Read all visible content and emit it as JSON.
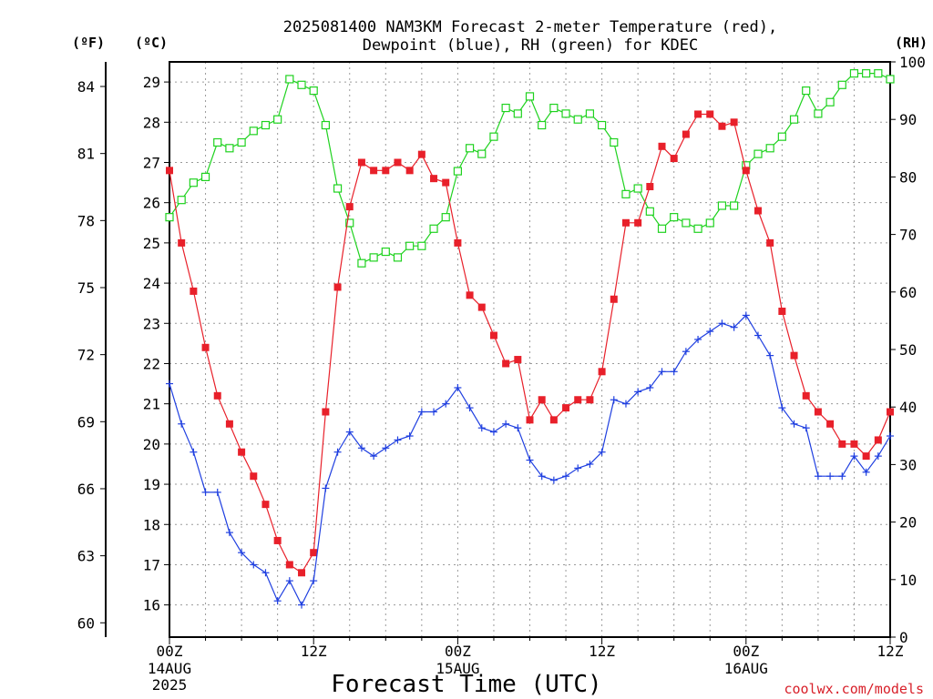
{
  "chart_data": {
    "type": "line",
    "title": "2025081400 NAM3KM Forecast 2-meter Temperature (red),",
    "subtitle": "Dewpoint (blue), RH (green) for KDEC",
    "xlabel": "Forecast Time (UTC)",
    "credit": "coolwx.com/models",
    "axis_units": {
      "f": "(ºF)",
      "c": "(ºC)",
      "rh": "(RH)"
    },
    "left_c_ticks": [
      "16",
      "17",
      "18",
      "19",
      "20",
      "21",
      "22",
      "23",
      "24",
      "25",
      "26",
      "27",
      "28",
      "29"
    ],
    "left_f_ticks": [
      "60",
      "63",
      "66",
      "69",
      "72",
      "75",
      "78",
      "81",
      "84"
    ],
    "right_rh_ticks": [
      "0",
      "10",
      "20",
      "30",
      "40",
      "50",
      "60",
      "70",
      "80",
      "90",
      "100"
    ],
    "x_ticks": [
      {
        "hour": 0,
        "label": "00Z",
        "sub1": "14AUG",
        "sub2": "2025"
      },
      {
        "hour": 12,
        "label": "12Z",
        "sub1": "",
        "sub2": ""
      },
      {
        "hour": 24,
        "label": "00Z",
        "sub1": "15AUG",
        "sub2": ""
      },
      {
        "hour": 36,
        "label": "12Z",
        "sub1": "",
        "sub2": ""
      },
      {
        "hour": 48,
        "label": "00Z",
        "sub1": "16AUG",
        "sub2": ""
      },
      {
        "hour": 60,
        "label": "12Z",
        "sub1": "",
        "sub2": ""
      }
    ],
    "x_range_hours": [
      0,
      60
    ],
    "c_range": [
      15.2,
      29.5
    ],
    "rh_range": [
      0,
      100
    ],
    "grid": true,
    "colors": {
      "temperature": "#e8202a",
      "dewpoint": "#1f3fe0",
      "rh": "#1fd21f"
    },
    "series": [
      {
        "name": "Temperature",
        "axis": "c",
        "marker": "filled-square",
        "values": [
          26.8,
          25.0,
          23.8,
          22.4,
          21.2,
          20.5,
          19.8,
          19.2,
          18.5,
          17.6,
          17.0,
          16.8,
          17.3,
          20.8,
          23.9,
          25.9,
          27.0,
          26.8,
          26.8,
          27.0,
          26.8,
          27.2,
          26.6,
          26.5,
          25.0,
          23.7,
          23.4,
          22.7,
          22.0,
          22.1,
          20.6,
          21.1,
          20.6,
          20.9,
          21.1,
          21.1,
          21.8,
          23.6,
          25.5,
          25.5,
          26.4,
          27.4,
          27.1,
          27.7,
          28.2,
          28.2,
          27.9,
          28.0,
          26.8,
          25.8,
          25.0,
          23.3,
          22.2,
          21.2,
          20.8,
          20.5,
          20.0,
          20.0,
          19.7,
          20.1,
          20.8
        ]
      },
      {
        "name": "Dewpoint",
        "axis": "c",
        "marker": "plus",
        "values": [
          21.5,
          20.5,
          19.8,
          18.8,
          18.8,
          17.8,
          17.3,
          17.0,
          16.8,
          16.1,
          16.6,
          16.0,
          16.6,
          18.9,
          19.8,
          20.3,
          19.9,
          19.7,
          19.9,
          20.1,
          20.2,
          20.8,
          20.8,
          21.0,
          21.4,
          20.9,
          20.4,
          20.3,
          20.5,
          20.4,
          19.6,
          19.2,
          19.1,
          19.2,
          19.4,
          19.5,
          19.8,
          21.1,
          21.0,
          21.3,
          21.4,
          21.8,
          21.8,
          22.3,
          22.6,
          22.8,
          23.0,
          22.9,
          23.2,
          22.7,
          22.2,
          20.9,
          20.5,
          20.4,
          19.2,
          19.2,
          19.2,
          19.7,
          19.3,
          19.7,
          20.2
        ]
      },
      {
        "name": "RH",
        "axis": "rh",
        "marker": "open-square",
        "values": [
          73,
          76,
          79,
          80,
          86,
          85,
          86,
          88,
          89,
          90,
          97,
          96,
          95,
          89,
          78,
          72,
          65,
          66,
          67,
          66,
          68,
          68,
          71,
          73,
          81,
          85,
          84,
          87,
          92,
          91,
          94,
          89,
          92,
          91,
          90,
          91,
          89,
          86,
          77,
          78,
          74,
          71,
          73,
          72,
          71,
          72,
          75,
          75,
          82,
          84,
          85,
          87,
          90,
          95,
          91,
          93,
          96,
          98,
          98,
          98,
          97
        ]
      }
    ]
  }
}
